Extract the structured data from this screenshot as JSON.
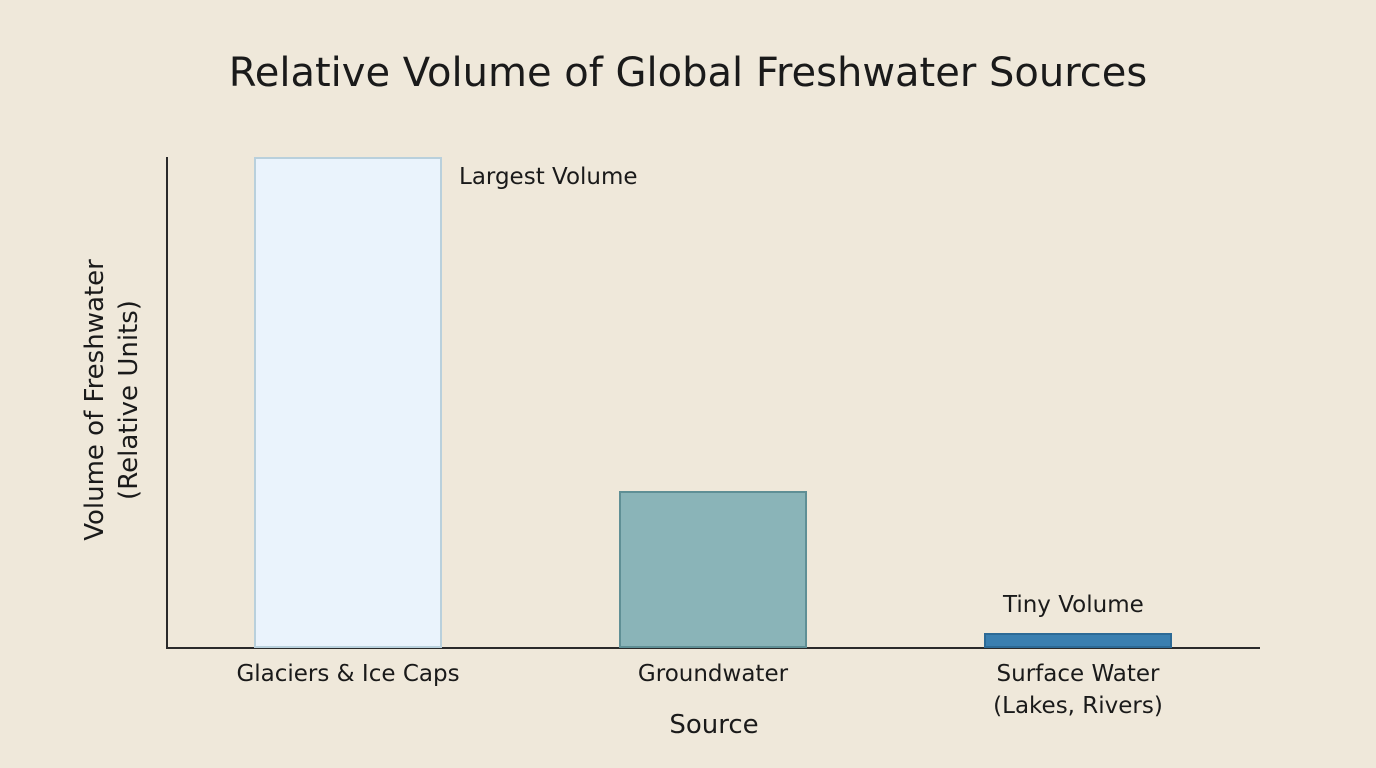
{
  "chart_data": {
    "type": "bar",
    "title": "Relative Volume of Global Freshwater Sources",
    "xlabel": "Source",
    "ylabel": "Volume of Freshwater (Relative Units)",
    "ylabel_lines": [
      "Volume of Freshwater",
      "(Relative Units)"
    ],
    "categories": [
      "Glaciers & Ice Caps",
      "Groundwater",
      "Surface Water (Lakes, Rivers)"
    ],
    "category_lines": [
      [
        "Glaciers & Ice Caps"
      ],
      [
        "Groundwater"
      ],
      [
        "Surface Water",
        "(Lakes, Rivers)"
      ]
    ],
    "values": [
      100,
      32,
      3
    ],
    "colors": [
      "#eaf3fc",
      "#8ab4b8",
      "#3a7fb0"
    ],
    "annotations": [
      {
        "category": "Glaciers & Ice Caps",
        "text": "Largest Volume"
      },
      {
        "category": "Surface Water (Lakes, Rivers)",
        "text": "Tiny Volume"
      }
    ],
    "ylim": [
      0,
      100
    ],
    "y_ticks": [],
    "grid": false,
    "legend": null
  }
}
